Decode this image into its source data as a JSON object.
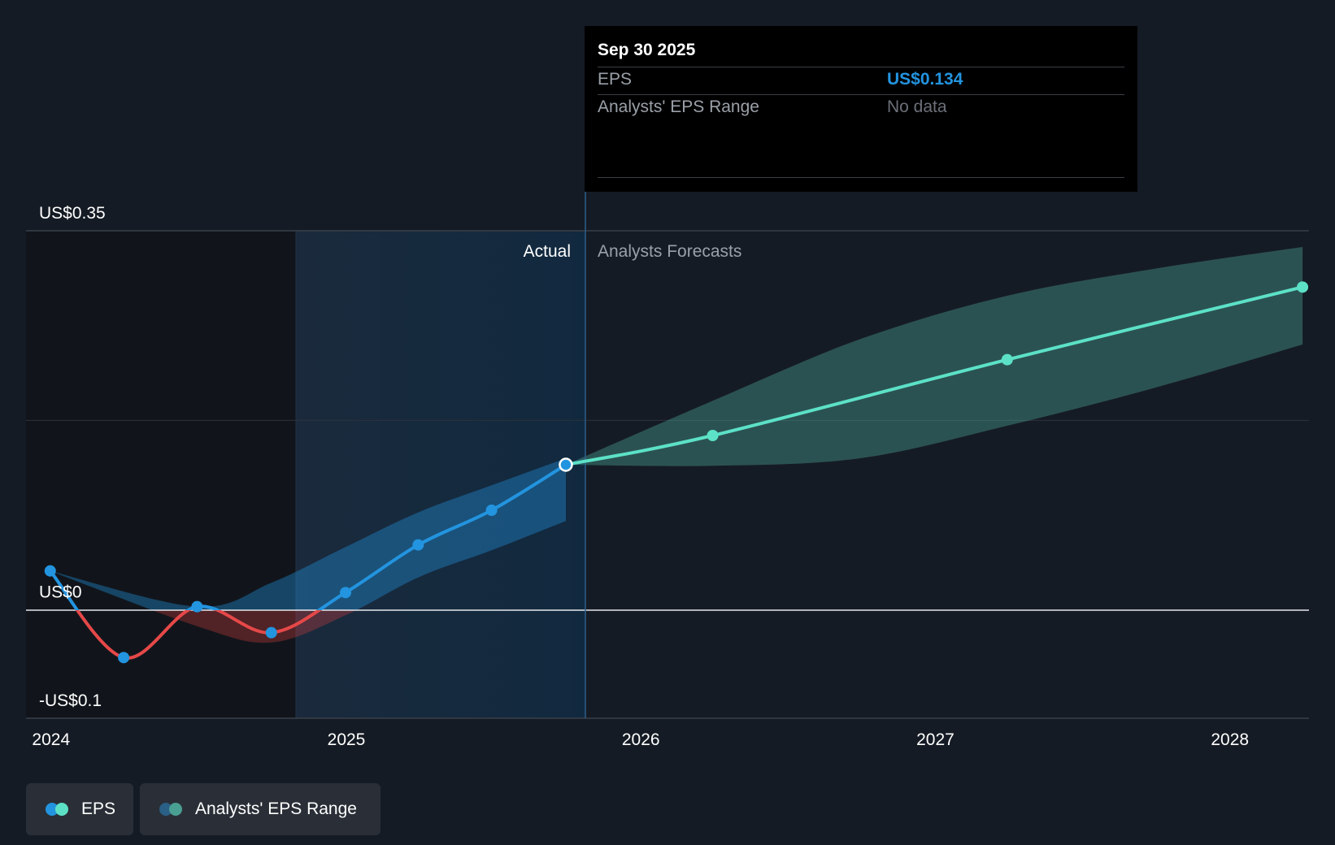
{
  "chart_data": {
    "type": "line",
    "x_range": [
      "2023-12-01",
      "2028-04-08"
    ],
    "y_range": [
      -0.1,
      0.35
    ],
    "y_tick_labels": [
      {
        "value": 0.35,
        "label": "US$0.35"
      },
      {
        "value": 0,
        "label": "US$0"
      },
      {
        "value": -0.1,
        "label": "-US$0.1"
      }
    ],
    "x_tick_labels": [
      {
        "date": "2024-01-01",
        "label": "2024"
      },
      {
        "date": "2025-01-01",
        "label": "2025"
      },
      {
        "date": "2026-01-01",
        "label": "2026"
      },
      {
        "date": "2027-01-01",
        "label": "2027"
      },
      {
        "date": "2028-01-01",
        "label": "2028"
      }
    ],
    "series": [
      {
        "name": "EPS",
        "points": [
          {
            "date": "2023-12-31",
            "value": 0.036
          },
          {
            "date": "2024-03-31",
            "value": -0.044
          },
          {
            "date": "2024-06-30",
            "value": 0.003
          },
          {
            "date": "2024-09-30",
            "value": -0.021
          },
          {
            "date": "2024-12-31",
            "value": 0.016
          },
          {
            "date": "2025-03-31",
            "value": 0.06
          },
          {
            "date": "2025-06-30",
            "value": 0.092
          },
          {
            "date": "2025-09-30",
            "value": 0.134
          }
        ],
        "forecast_points": [
          {
            "date": "2025-09-30",
            "value": 0.134
          },
          {
            "date": "2026-03-31",
            "value": 0.161
          },
          {
            "date": "2027-03-31",
            "value": 0.231
          },
          {
            "date": "2028-03-31",
            "value": 0.298
          }
        ]
      }
    ],
    "history_range": {
      "dates": [
        "2023-12-31",
        "2024-06-30",
        "2024-09-30",
        "2024-12-31",
        "2025-03-31",
        "2025-06-30",
        "2025-09-30"
      ],
      "low": [
        0.036,
        -0.015,
        -0.03,
        -0.005,
        0.03,
        0.055,
        0.082
      ],
      "high": [
        0.036,
        0.003,
        0.025,
        0.058,
        0.09,
        0.115,
        0.14
      ]
    },
    "forecast_range": {
      "dates": [
        "2025-09-30",
        "2026-03-31",
        "2026-09-30",
        "2027-03-31",
        "2027-09-30",
        "2028-03-31"
      ],
      "low": [
        0.134,
        0.133,
        0.14,
        0.17,
        0.205,
        0.245
      ],
      "high": [
        0.134,
        0.193,
        0.25,
        0.29,
        0.315,
        0.335
      ]
    },
    "actual_region_start": "2024-09-30",
    "actual_forecast_divider": "2025-09-30",
    "divider_labels": {
      "actual": "Actual",
      "forecast": "Analysts Forecasts"
    },
    "grid": true,
    "colors": {
      "eps_actual": "#2394df",
      "eps_negative": "#e64848",
      "eps_forecast": "#5ce1c7",
      "range_actual": "#2394df",
      "range_negative": "#c83c3c",
      "range_forecast": "#4a9f93"
    }
  },
  "tooltip": {
    "date": "Sep 30 2025",
    "rows": [
      {
        "label": "EPS",
        "value": "US$0.134",
        "color": "#2394df"
      },
      {
        "label": "Analysts' EPS Range",
        "value": "No data",
        "color": "#6b7079"
      }
    ]
  },
  "legend": {
    "items": [
      {
        "label": "EPS",
        "colors": [
          "#2394df",
          "#5ce1c7"
        ]
      },
      {
        "label": "Analysts' EPS Range",
        "colors": [
          "#2a5f86",
          "#4a9f93"
        ]
      }
    ]
  }
}
